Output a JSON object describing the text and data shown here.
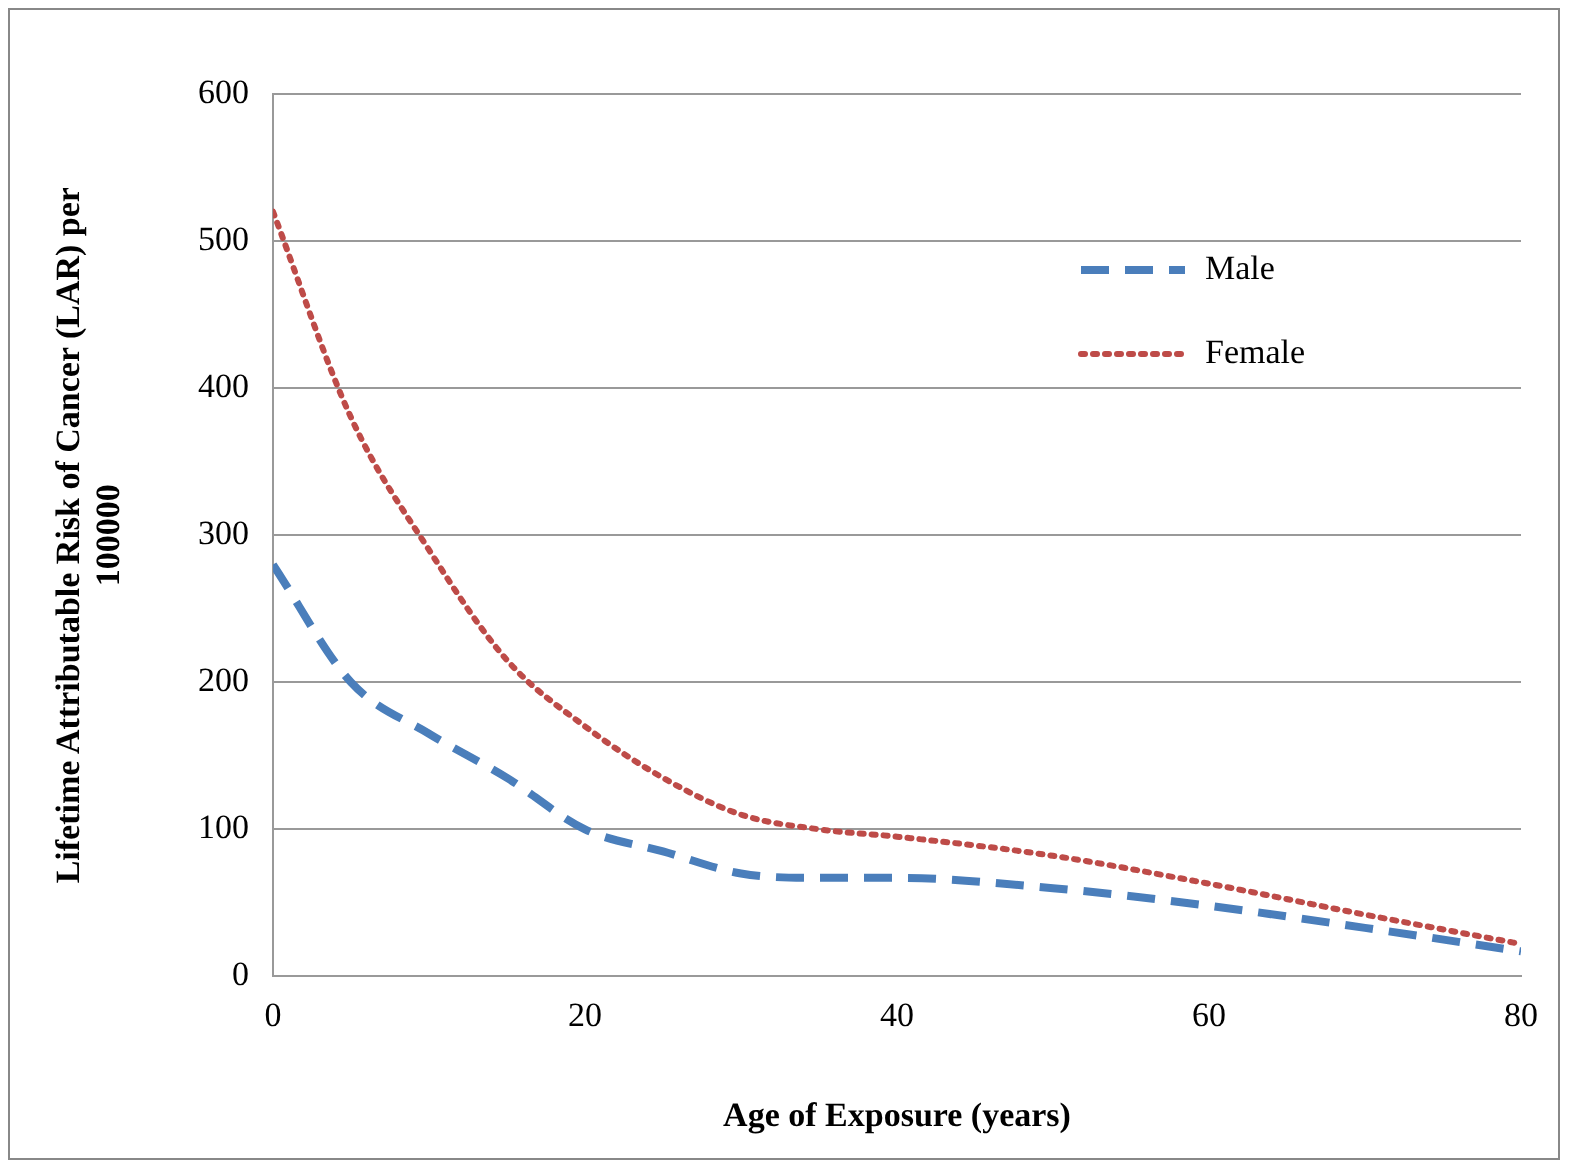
{
  "chart_data": {
    "type": "line",
    "xlabel": "Age of Exposure (years)",
    "ylabel": "Lifetime Attributable Risk of Cancer (LAR) per 100000",
    "x": [
      0,
      5,
      10,
      15,
      20,
      25,
      30,
      35,
      40,
      50,
      60,
      70,
      80
    ],
    "series": [
      {
        "name": "Male",
        "color": "#4a7ebb",
        "line_style": "dashed",
        "values": [
          280,
          200,
          165,
          135,
          100,
          85,
          70,
          67,
          67,
          60,
          48,
          33,
          17
        ]
      },
      {
        "name": "Female",
        "color": "#be4b48",
        "line_style": "dotted",
        "values": [
          520,
          380,
          290,
          215,
          170,
          135,
          110,
          100,
          95,
          82,
          63,
          42,
          22
        ]
      }
    ],
    "xlim": [
      0,
      80
    ],
    "xticks": [
      0,
      20,
      40,
      60,
      80
    ],
    "ylim": [
      0,
      600
    ],
    "yticks": [
      0,
      100,
      200,
      300,
      400,
      500,
      600
    ],
    "grid": "y",
    "legend": "top right",
    "marker": "none"
  }
}
